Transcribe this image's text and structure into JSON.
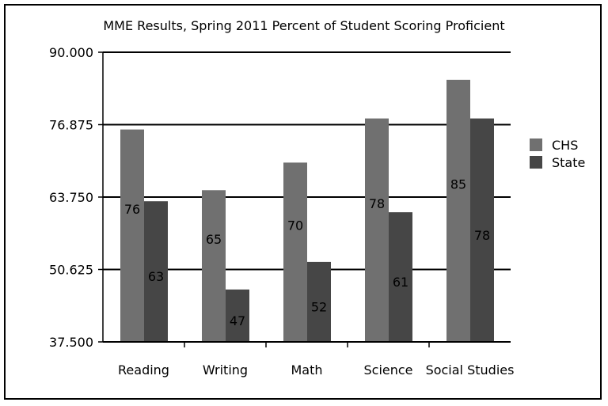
{
  "chart_data": {
    "type": "bar",
    "title": "MME Results, Spring 2011 Percent of Student Scoring Proficient",
    "xlabel": "",
    "ylabel": "",
    "categories": [
      "Reading",
      "Writing",
      "Math",
      "Science",
      "Social Studies"
    ],
    "series": [
      {
        "name": "CHS",
        "values": [
          76,
          65,
          70,
          78,
          85
        ],
        "labels": [
          "76",
          "65",
          "70",
          "78",
          "85"
        ],
        "color": "#707070"
      },
      {
        "name": "State",
        "values": [
          63,
          47,
          52,
          61,
          78
        ],
        "labels": [
          "63",
          "47",
          "52",
          "61",
          "78"
        ],
        "color": "#464646"
      }
    ],
    "ylim": [
      37.5,
      90
    ],
    "yticks": [
      "37.500",
      "50.625",
      "63.750",
      "76.875",
      "90.000"
    ],
    "ytick_values": [
      37.5,
      50.625,
      63.75,
      76.875,
      90
    ],
    "grid": true,
    "legend_position": "right"
  }
}
